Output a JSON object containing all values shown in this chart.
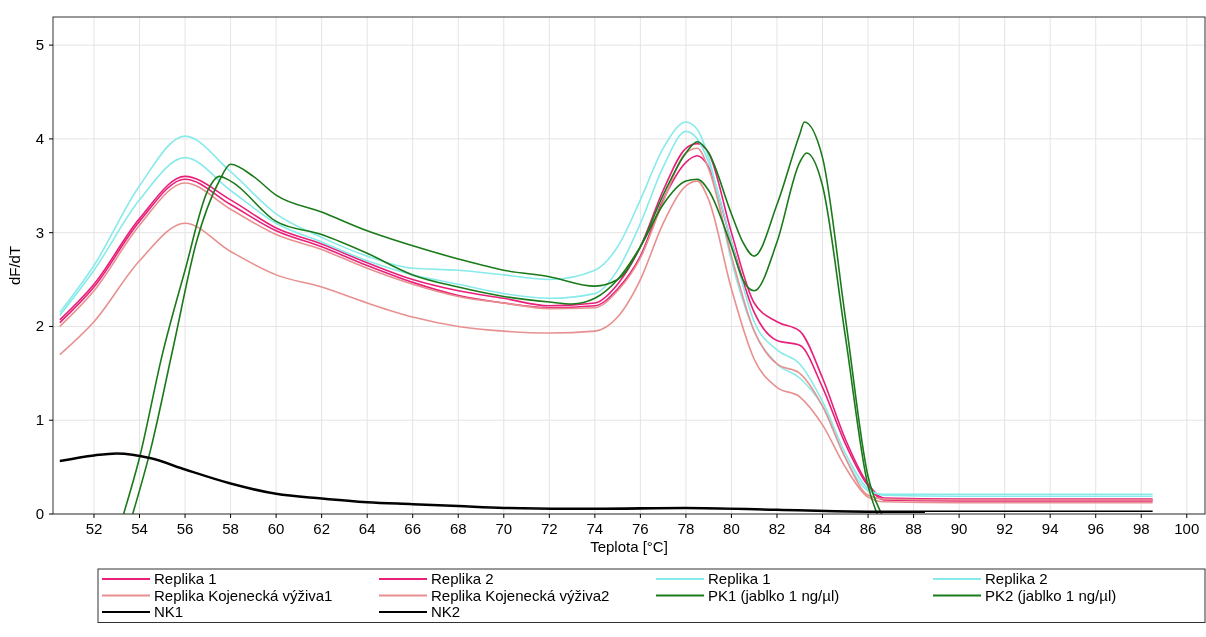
{
  "chart_data": {
    "type": "line",
    "xlabel": "Teplota [°C]",
    "ylabel": "dF/dT",
    "xlim": [
      50.2,
      100.8
    ],
    "ylim": [
      0,
      5.3
    ],
    "xticks": [
      52,
      54,
      56,
      58,
      60,
      62,
      64,
      66,
      68,
      70,
      72,
      74,
      76,
      78,
      80,
      82,
      84,
      86,
      88,
      90,
      92,
      94,
      96,
      98,
      100
    ],
    "yticks": [
      0,
      1,
      2,
      3,
      4,
      5
    ],
    "grid": true,
    "legend": "bottom",
    "marker": "none",
    "line_style": "solid",
    "x": [
      50.5,
      52,
      54,
      56,
      58,
      60,
      62,
      64,
      66,
      68,
      70,
      72,
      74,
      75,
      76,
      77,
      78,
      78.5,
      79,
      80,
      81,
      82,
      83,
      84,
      85,
      86,
      86.7,
      90,
      98.5
    ],
    "series": [
      {
        "name": "Replika 1",
        "color": "#e8207a",
        "values": [
          2.07,
          2.45,
          3.15,
          3.6,
          3.35,
          3.05,
          2.88,
          2.68,
          2.5,
          2.38,
          2.3,
          2.22,
          2.25,
          2.45,
          2.85,
          3.45,
          3.9,
          3.95,
          3.85,
          3.0,
          2.25,
          2.05,
          1.95,
          1.45,
          0.8,
          0.32,
          0.17,
          0.16,
          0.16
        ]
      },
      {
        "name": "Replika 2",
        "color": "#e8207a",
        "values": [
          2.04,
          2.42,
          3.12,
          3.57,
          3.3,
          3.02,
          2.85,
          2.65,
          2.47,
          2.33,
          2.25,
          2.2,
          2.22,
          2.4,
          2.75,
          3.35,
          3.75,
          3.82,
          3.7,
          2.9,
          2.15,
          1.85,
          1.8,
          1.35,
          0.75,
          0.3,
          0.15,
          0.14,
          0.14
        ]
      },
      {
        "name": "Replika 1",
        "color": "#88eaea",
        "values": [
          2.15,
          2.65,
          3.5,
          4.03,
          3.65,
          3.2,
          2.95,
          2.75,
          2.62,
          2.6,
          2.55,
          2.5,
          2.6,
          2.85,
          3.35,
          3.9,
          4.18,
          4.1,
          3.8,
          2.7,
          1.95,
          1.6,
          1.45,
          1.15,
          0.6,
          0.25,
          0.21,
          0.21,
          0.21
        ]
      },
      {
        "name": "Replika 2",
        "color": "#88eaea",
        "values": [
          2.12,
          2.6,
          3.35,
          3.8,
          3.45,
          3.1,
          2.9,
          2.7,
          2.55,
          2.45,
          2.35,
          2.3,
          2.35,
          2.6,
          3.1,
          3.7,
          4.08,
          4.0,
          3.75,
          2.9,
          2.05,
          1.75,
          1.6,
          1.2,
          0.65,
          0.27,
          0.2,
          0.19,
          0.19
        ]
      },
      {
        "name": "Replika Kojenecká výživa1",
        "color": "#e89090",
        "values": [
          2.0,
          2.38,
          3.08,
          3.53,
          3.25,
          2.98,
          2.82,
          2.62,
          2.45,
          2.32,
          2.25,
          2.19,
          2.2,
          2.38,
          2.73,
          3.33,
          3.85,
          3.9,
          3.68,
          2.75,
          1.95,
          1.6,
          1.5,
          1.15,
          0.6,
          0.2,
          0.16,
          0.15,
          0.15
        ]
      },
      {
        "name": "Replika Kojenecká výživa2",
        "color": "#e89090",
        "values": [
          1.7,
          2.05,
          2.7,
          3.1,
          2.8,
          2.55,
          2.42,
          2.25,
          2.1,
          2.0,
          1.95,
          1.93,
          1.95,
          2.1,
          2.5,
          3.1,
          3.5,
          3.55,
          3.35,
          2.4,
          1.65,
          1.35,
          1.25,
          0.95,
          0.5,
          0.18,
          0.13,
          0.12,
          0.12
        ]
      },
      {
        "name": "PK1 (jablko 1 ng/µl)",
        "color": "#1a7a1a",
        "x": [
          53.3,
          54,
          55,
          56,
          57,
          57.5,
          58,
          60,
          62,
          64,
          66,
          68,
          70,
          72,
          73,
          74,
          75,
          76,
          77,
          78,
          78.5,
          79,
          80,
          80.5,
          81,
          82,
          83,
          83.3,
          84,
          85,
          86,
          86.4
        ],
        "values": [
          0,
          0.6,
          1.7,
          2.6,
          3.45,
          3.6,
          3.55,
          3.12,
          2.98,
          2.78,
          2.55,
          2.42,
          2.32,
          2.26,
          2.24,
          2.3,
          2.5,
          2.85,
          3.3,
          3.55,
          3.57,
          3.45,
          2.85,
          2.5,
          2.38,
          2.9,
          3.75,
          3.85,
          3.5,
          1.9,
          0.3,
          0
        ]
      },
      {
        "name": "PK2 (jablko 1 ng/µl)",
        "color": "#1a7a1a",
        "x": [
          53.7,
          54.5,
          55.5,
          56.5,
          57.5,
          58,
          59,
          60,
          62,
          64,
          66,
          68,
          70,
          72,
          74,
          75,
          76,
          77,
          78,
          78.5,
          79,
          80,
          80.5,
          81,
          82,
          83,
          83.2,
          84,
          85,
          86,
          86.6
        ],
        "values": [
          0,
          0.7,
          1.8,
          2.9,
          3.55,
          3.73,
          3.6,
          3.4,
          3.22,
          3.02,
          2.86,
          2.72,
          2.6,
          2.53,
          2.43,
          2.5,
          2.85,
          3.4,
          3.85,
          3.97,
          3.85,
          3.2,
          2.9,
          2.75,
          3.3,
          4.05,
          4.18,
          3.8,
          2.1,
          0.4,
          0
        ]
      },
      {
        "name": "NK1",
        "color": "#000000",
        "x": [
          50.5,
          52,
          53,
          54.5,
          56,
          58,
          60,
          62,
          64,
          66,
          68,
          70,
          74,
          78,
          82,
          86,
          98.5
        ],
        "values": [
          0.57,
          0.63,
          0.65,
          0.6,
          0.48,
          0.33,
          0.22,
          0.17,
          0.13,
          0.11,
          0.09,
          0.07,
          0.06,
          0.07,
          0.05,
          0.03,
          0.03
        ]
      },
      {
        "name": "NK2",
        "color": "#000000",
        "x": [
          50.5,
          52,
          53,
          54.5,
          56,
          58,
          60,
          62,
          64,
          66,
          68,
          70,
          74,
          78,
          82,
          86,
          88.5
        ],
        "values": [
          0.56,
          0.62,
          0.64,
          0.59,
          0.47,
          0.32,
          0.21,
          0.16,
          0.12,
          0.1,
          0.08,
          0.06,
          0.05,
          0.06,
          0.04,
          0.02,
          0.02
        ]
      }
    ]
  }
}
